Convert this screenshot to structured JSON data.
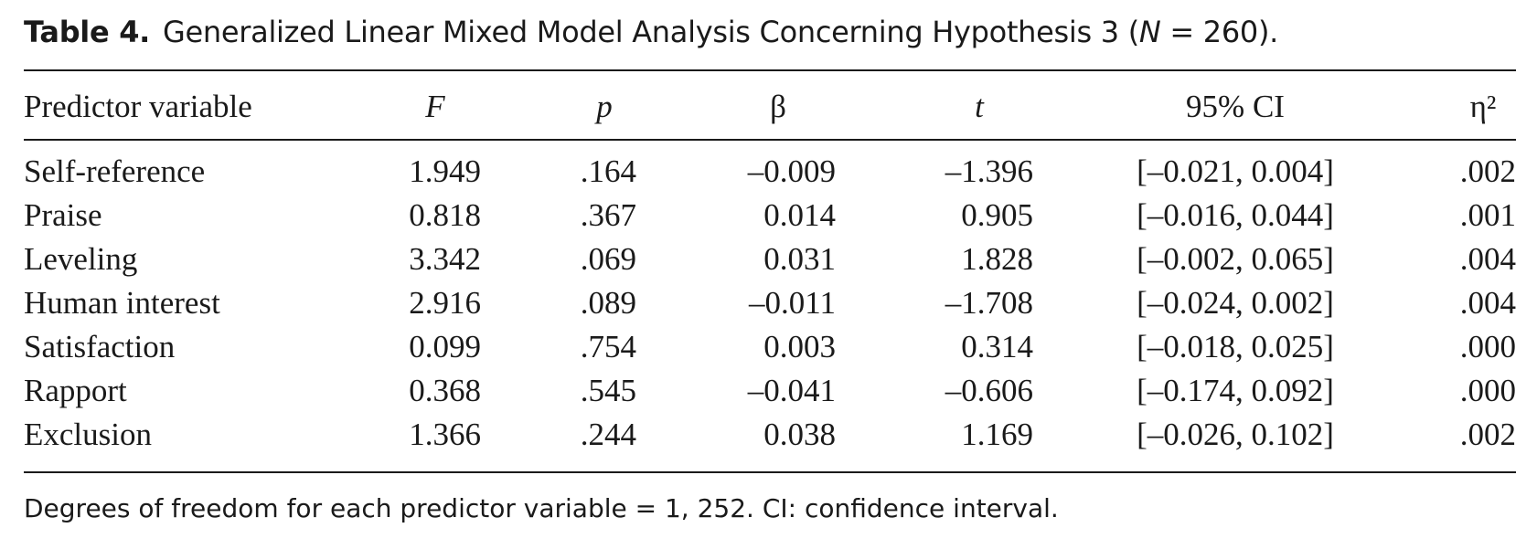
{
  "title": {
    "label": "Table 4.",
    "text_before": "Generalized Linear Mixed Model Analysis Concerning Hypothesis 3 (",
    "n_symbol": "N",
    "text_after": " = 260)."
  },
  "columns": [
    "Predictor variable",
    "F",
    "p",
    "β",
    "t",
    "95% CI",
    "η²"
  ],
  "rows": [
    [
      "Self-reference",
      "1.949",
      ".164",
      "–0.009",
      "–1.396",
      "[–0.021, 0.004]",
      ".002"
    ],
    [
      "Praise",
      "0.818",
      ".367",
      "0.014",
      "0.905",
      "[–0.016, 0.044]",
      ".001"
    ],
    [
      "Leveling",
      "3.342",
      ".069",
      "0.031",
      "1.828",
      "[–0.002, 0.065]",
      ".004"
    ],
    [
      "Human interest",
      "2.916",
      ".089",
      "–0.011",
      "–1.708",
      "[–0.024, 0.002]",
      ".004"
    ],
    [
      "Satisfaction",
      "0.099",
      ".754",
      "0.003",
      "0.314",
      "[–0.018, 0.025]",
      ".000"
    ],
    [
      "Rapport",
      "0.368",
      ".545",
      "–0.041",
      "–0.606",
      "[–0.174, 0.092]",
      ".000"
    ],
    [
      "Exclusion",
      "1.366",
      ".244",
      "0.038",
      "1.169",
      "[–0.026, 0.102]",
      ".002"
    ]
  ],
  "note": "Degrees of freedom for each predictor variable = 1, 252. CI: confidence interval."
}
